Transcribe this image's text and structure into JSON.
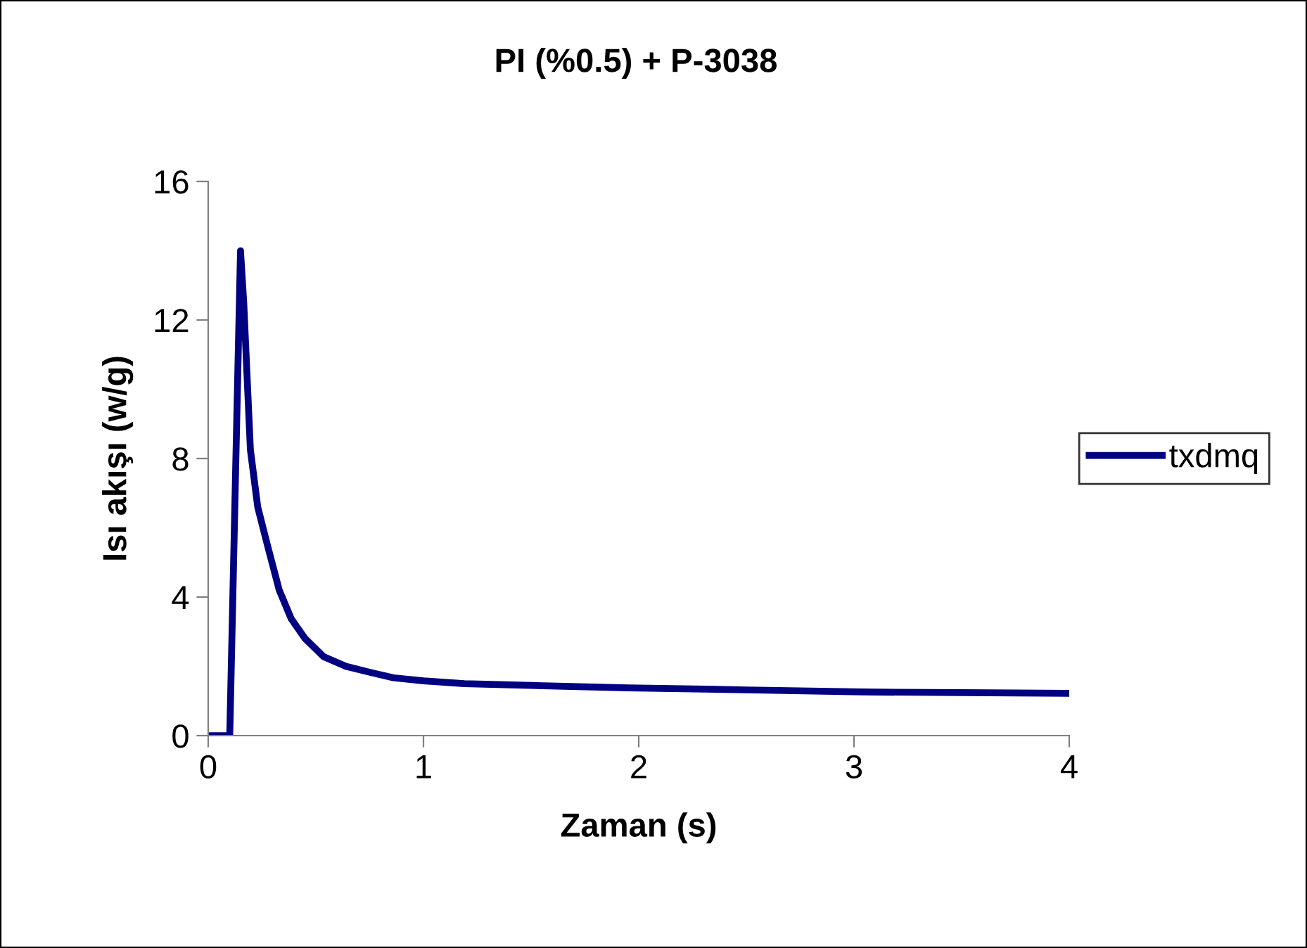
{
  "chart_data": {
    "type": "line",
    "title": "PI (%0.5) + P-3038",
    "xlabel": "Zaman (s)",
    "ylabel": "Isı akışı (w/g)",
    "series": [
      {
        "name": "txdmq",
        "color": "#000080",
        "x": [
          0,
          0.05,
          0.1,
          0.125,
          0.15,
          0.165,
          0.196,
          0.23,
          0.275,
          0.33,
          0.386,
          0.45,
          0.536,
          0.64,
          0.75,
          0.86,
          1.0,
          1.19,
          1.5,
          1.95,
          2.5,
          3.04,
          3.5,
          4.0
        ],
        "values": [
          0,
          0,
          0,
          7.0,
          14.0,
          12.5,
          8.25,
          6.6,
          5.5,
          4.2,
          3.37,
          2.8,
          2.28,
          2.0,
          1.83,
          1.67,
          1.58,
          1.5,
          1.45,
          1.38,
          1.32,
          1.26,
          1.24,
          1.22
        ]
      }
    ],
    "xlim": [
      0,
      4
    ],
    "xticks": [
      0,
      1,
      2,
      3,
      4
    ],
    "ylim": [
      0,
      16
    ],
    "yticks": [
      0,
      4,
      8,
      12,
      16
    ],
    "grid": false,
    "legend": "right",
    "marker": "none",
    "line_style": "solid"
  }
}
